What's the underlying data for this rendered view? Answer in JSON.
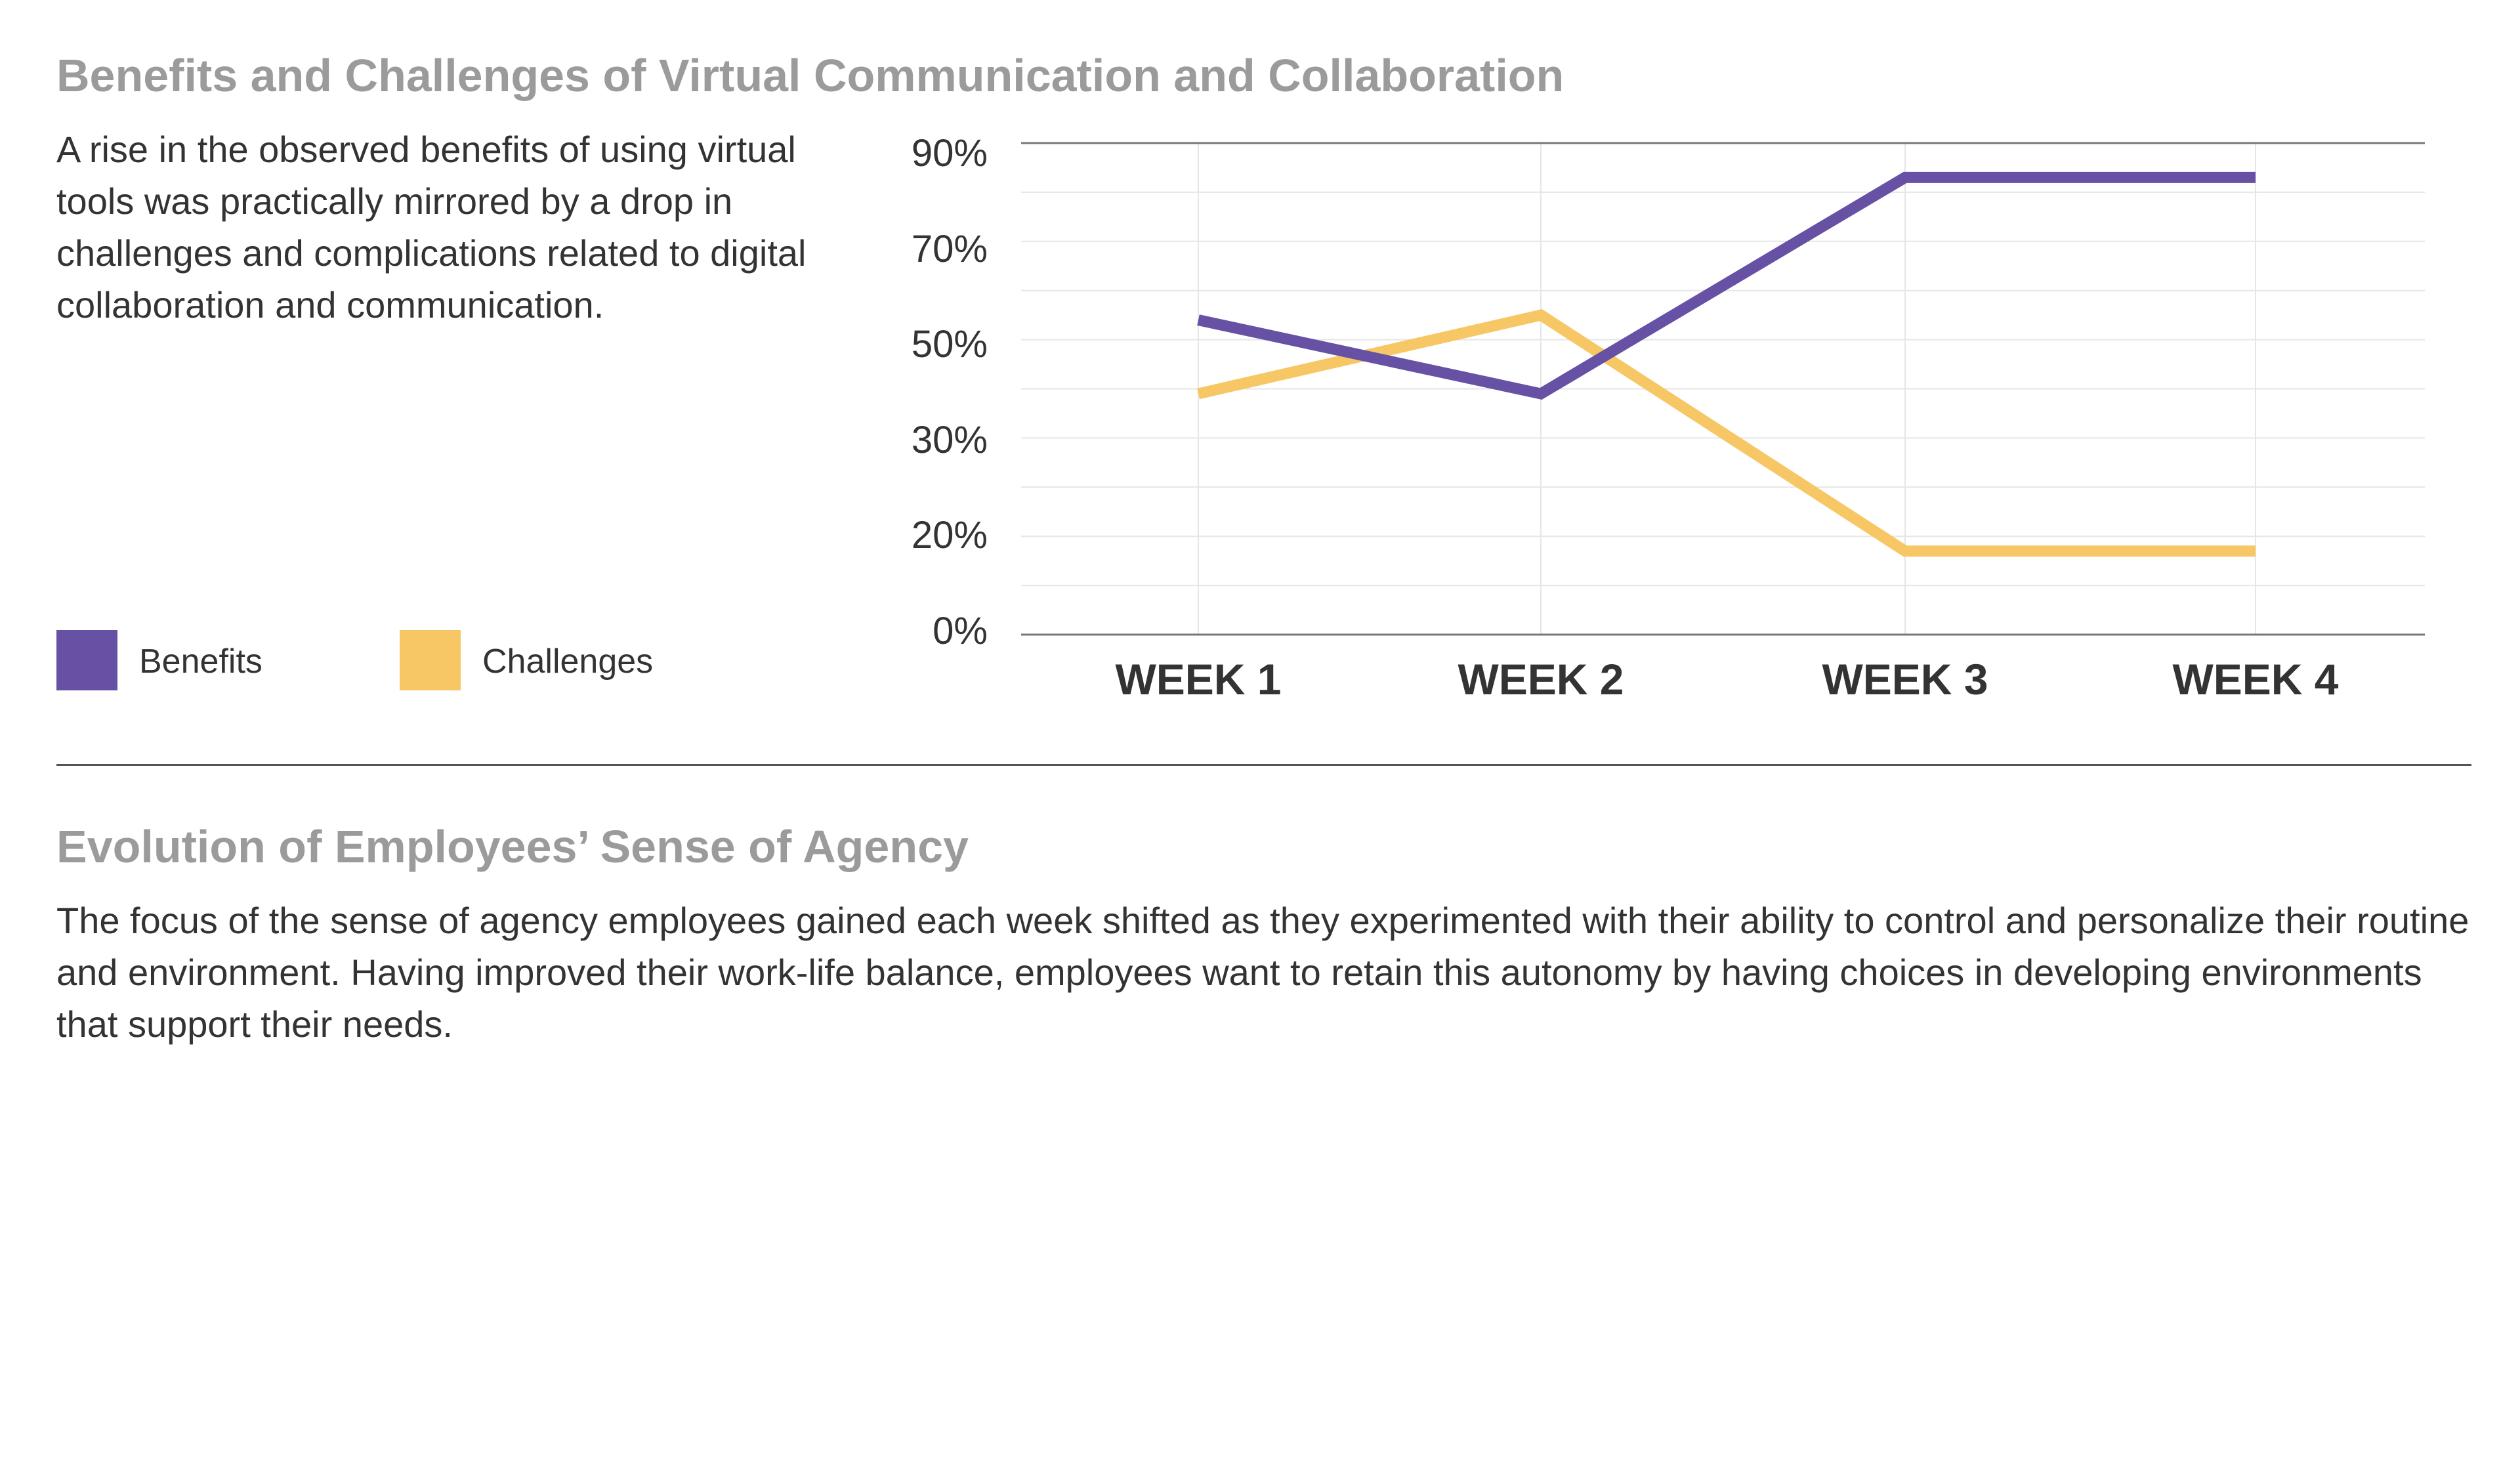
{
  "top_section": {
    "title": "Benefits and Challenges of Virtual Communication and Collaboration",
    "description": "A rise in the observed benefits of using virtual tools was practically mirrored by a drop in challenges and complications related to digital collaboration and communication."
  },
  "bottom_section": {
    "title": "Evolution of Employees’ Sense of Agency",
    "description": "The focus of the sense of agency employees gained each week shifted as they experimented with their ability to control and personalize their routine and environment. Having improved their work-life balance, employees want to retain this autonomy by having choices in developing environments that support their needs."
  },
  "colors": {
    "benefits": "#6651a4",
    "challenges": "#f7c765",
    "heading": "#9b9b9b",
    "text": "#333333",
    "grid": "#e6e6e6",
    "axis": "#777777"
  },
  "chart_data": {
    "type": "line",
    "title": "Benefits and Challenges of Virtual Communication and Collaboration",
    "xlabel": "",
    "ylabel": "",
    "categories": [
      "WEEK 1",
      "WEEK 2",
      "WEEK 3",
      "WEEK 4"
    ],
    "y_tick_labels": [
      "90%",
      "70%",
      "50%",
      "30%",
      "20%",
      "0%"
    ],
    "ylim": [
      0,
      100
    ],
    "grid": true,
    "legend_position": "bottom-left",
    "series": [
      {
        "name": "Benefits",
        "color": "#6651a4",
        "values": [
          64,
          49,
          93,
          93
        ]
      },
      {
        "name": "Challenges",
        "color": "#f7c765",
        "values": [
          49,
          65,
          17,
          17
        ]
      }
    ]
  }
}
